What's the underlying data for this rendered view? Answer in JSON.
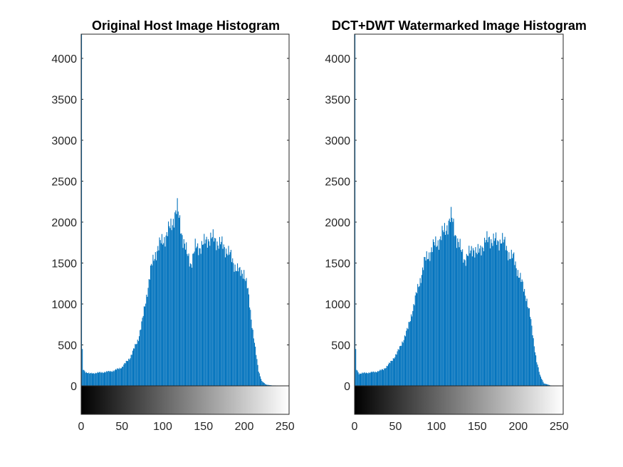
{
  "chart_data": [
    {
      "type": "bar",
      "title": "Original Host Image Histogram",
      "xlabel": "",
      "ylabel": "",
      "xlim": [
        0,
        255
      ],
      "ylim": [
        0,
        4300
      ],
      "xticks": [
        "0",
        "50",
        "100",
        "150",
        "200",
        "250"
      ],
      "yticks": [
        "0",
        "500",
        "1000",
        "1500",
        "2000",
        "2500",
        "3000",
        "3500",
        "4000"
      ],
      "colorbar": "grayscale 0-255",
      "bar_color": "#0072BD",
      "knots": [
        [
          0,
          4300
        ],
        [
          1,
          450
        ],
        [
          2,
          200
        ],
        [
          5,
          170
        ],
        [
          10,
          150
        ],
        [
          20,
          160
        ],
        [
          30,
          170
        ],
        [
          40,
          185
        ],
        [
          50,
          230
        ],
        [
          60,
          350
        ],
        [
          65,
          460
        ],
        [
          70,
          580
        ],
        [
          75,
          800
        ],
        [
          80,
          1100
        ],
        [
          85,
          1400
        ],
        [
          90,
          1600
        ],
        [
          95,
          1700
        ],
        [
          100,
          1780
        ],
        [
          105,
          1850
        ],
        [
          110,
          1950
        ],
        [
          115,
          2100
        ],
        [
          118,
          2150
        ],
        [
          120,
          2050
        ],
        [
          125,
          1800
        ],
        [
          130,
          1600
        ],
        [
          135,
          1500
        ],
        [
          140,
          1680
        ],
        [
          145,
          1700
        ],
        [
          150,
          1720
        ],
        [
          155,
          1800
        ],
        [
          160,
          1800
        ],
        [
          165,
          1780
        ],
        [
          170,
          1740
        ],
        [
          175,
          1700
        ],
        [
          180,
          1650
        ],
        [
          185,
          1550
        ],
        [
          190,
          1450
        ],
        [
          195,
          1380
        ],
        [
          200,
          1400
        ],
        [
          205,
          1150
        ],
        [
          210,
          750
        ],
        [
          215,
          380
        ],
        [
          218,
          180
        ],
        [
          222,
          60
        ],
        [
          227,
          15
        ],
        [
          235,
          5
        ],
        [
          255,
          3
        ]
      ]
    },
    {
      "type": "bar",
      "title": "DCT+DWT Watermarked Image Histogram",
      "xlabel": "",
      "ylabel": "",
      "xlim": [
        0,
        255
      ],
      "ylim": [
        0,
        4300
      ],
      "xticks": [
        "0",
        "50",
        "100",
        "150",
        "200",
        "250"
      ],
      "yticks": [
        "0",
        "500",
        "1000",
        "1500",
        "2000",
        "2500",
        "3000",
        "3500",
        "4000"
      ],
      "colorbar": "grayscale 0-255",
      "bar_color": "#0072BD",
      "knots": [
        [
          0,
          4300
        ],
        [
          1,
          450
        ],
        [
          2,
          200
        ],
        [
          5,
          150
        ],
        [
          15,
          160
        ],
        [
          25,
          170
        ],
        [
          35,
          200
        ],
        [
          45,
          300
        ],
        [
          55,
          460
        ],
        [
          60,
          580
        ],
        [
          65,
          700
        ],
        [
          70,
          900
        ],
        [
          75,
          1100
        ],
        [
          80,
          1300
        ],
        [
          85,
          1500
        ],
        [
          90,
          1600
        ],
        [
          95,
          1680
        ],
        [
          100,
          1750
        ],
        [
          105,
          1800
        ],
        [
          110,
          1900
        ],
        [
          115,
          2000
        ],
        [
          118,
          2050
        ],
        [
          120,
          2000
        ],
        [
          125,
          1800
        ],
        [
          130,
          1650
        ],
        [
          135,
          1550
        ],
        [
          140,
          1600
        ],
        [
          145,
          1700
        ],
        [
          150,
          1600
        ],
        [
          155,
          1700
        ],
        [
          160,
          1750
        ],
        [
          165,
          1800
        ],
        [
          170,
          1780
        ],
        [
          175,
          1750
        ],
        [
          180,
          1800
        ],
        [
          185,
          1700
        ],
        [
          190,
          1600
        ],
        [
          195,
          1550
        ],
        [
          200,
          1400
        ],
        [
          205,
          1250
        ],
        [
          210,
          1100
        ],
        [
          215,
          850
        ],
        [
          220,
          500
        ],
        [
          223,
          300
        ],
        [
          227,
          130
        ],
        [
          232,
          30
        ],
        [
          240,
          5
        ],
        [
          255,
          3
        ]
      ]
    }
  ]
}
